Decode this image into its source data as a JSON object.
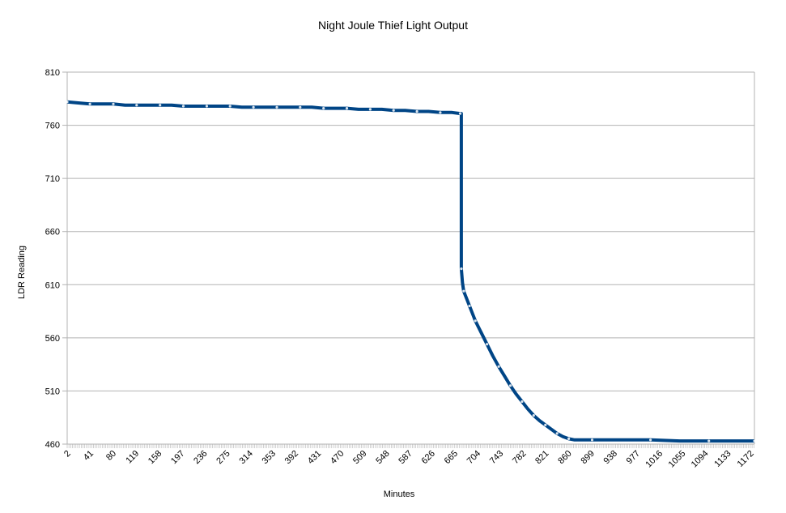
{
  "chart_data": {
    "type": "line",
    "title": "Night Joule Thief Light Output",
    "xlabel": "Minutes",
    "ylabel": "LDR Reading",
    "ylim": [
      460,
      810
    ],
    "y_ticks": [
      460,
      510,
      560,
      610,
      660,
      710,
      760,
      810
    ],
    "x_tick_labels": [
      "2",
      "41",
      "80",
      "119",
      "158",
      "197",
      "236",
      "275",
      "314",
      "353",
      "392",
      "431",
      "470",
      "509",
      "548",
      "587",
      "626",
      "665",
      "704",
      "743",
      "782",
      "821",
      "860",
      "899",
      "938",
      "977",
      "1016",
      "1055",
      "1094",
      "1133",
      "1172"
    ],
    "xlim": [
      1,
      1178
    ],
    "grid": "horizontal",
    "legend": "none",
    "line_color": "#004586",
    "series": [
      {
        "x": [
          1,
          20,
          40,
          60,
          80,
          100,
          120,
          140,
          160,
          180,
          200,
          220,
          240,
          260,
          280,
          300,
          320,
          340,
          360,
          380,
          400,
          420,
          440,
          460,
          480,
          500,
          520,
          540,
          560,
          580,
          600,
          620,
          640,
          660,
          674,
          676,
          676,
          678,
          680,
          685,
          690,
          695,
          700,
          710,
          720,
          730,
          740,
          750,
          760,
          770,
          780,
          790,
          800,
          810,
          820,
          830,
          840,
          850,
          860,
          870,
          900,
          950,
          1000,
          1050,
          1100,
          1150,
          1178
        ],
        "y": [
          782,
          781,
          780,
          780,
          780,
          779,
          779,
          779,
          779,
          779,
          778,
          778,
          778,
          778,
          778,
          777,
          777,
          777,
          777,
          777,
          777,
          777,
          776,
          776,
          776,
          775,
          775,
          775,
          774,
          774,
          773,
          773,
          772,
          772,
          771,
          771,
          625,
          612,
          604,
          597,
          590,
          583,
          576,
          565,
          554,
          543,
          533,
          524,
          515,
          507,
          500,
          493,
          487,
          482,
          478,
          474,
          470,
          467,
          465,
          464,
          464,
          464,
          464,
          463,
          463,
          463,
          463
        ]
      }
    ]
  }
}
